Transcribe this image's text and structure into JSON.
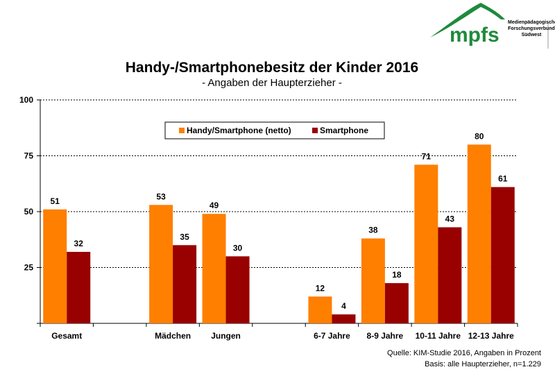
{
  "logo": {
    "name": "mpfs",
    "tagline": [
      "Medienpädagogischer",
      "Forschungsverbund",
      "Südwest"
    ],
    "color": "#1f8a3c"
  },
  "source": {
    "line1": "Quelle: KIM-Studie 2016, Angaben in Prozent",
    "line2": "Basis: alle Haupterzieher, n=1.229"
  },
  "colors": {
    "orange": "#ff7f00",
    "darkred": "#990000"
  },
  "chart_data": {
    "type": "bar",
    "title": "Handy-/Smartphonebesitz der Kinder 2016",
    "subtitle": "- Angaben der Haupterzieher -",
    "xlabel": "",
    "ylabel": "",
    "ylim": [
      0,
      100
    ],
    "yticks": [
      0,
      25,
      50,
      75,
      100
    ],
    "ytick_labels": [
      "",
      "25",
      "50",
      "75",
      "100"
    ],
    "grid": true,
    "legend": "top-center",
    "categories": [
      "Gesamt",
      "",
      "Mädchen",
      "Jungen",
      "",
      "6-7 Jahre",
      "8-9 Jahre",
      "10-11 Jahre",
      "12-13 Jahre"
    ],
    "series": [
      {
        "name": "Handy/Smartphone (netto)",
        "color": "#ff7f00",
        "values": [
          51,
          null,
          53,
          49,
          null,
          12,
          38,
          71,
          80
        ]
      },
      {
        "name": "Smartphone",
        "color": "#990000",
        "values": [
          32,
          null,
          35,
          30,
          null,
          4,
          18,
          43,
          61
        ]
      }
    ]
  }
}
